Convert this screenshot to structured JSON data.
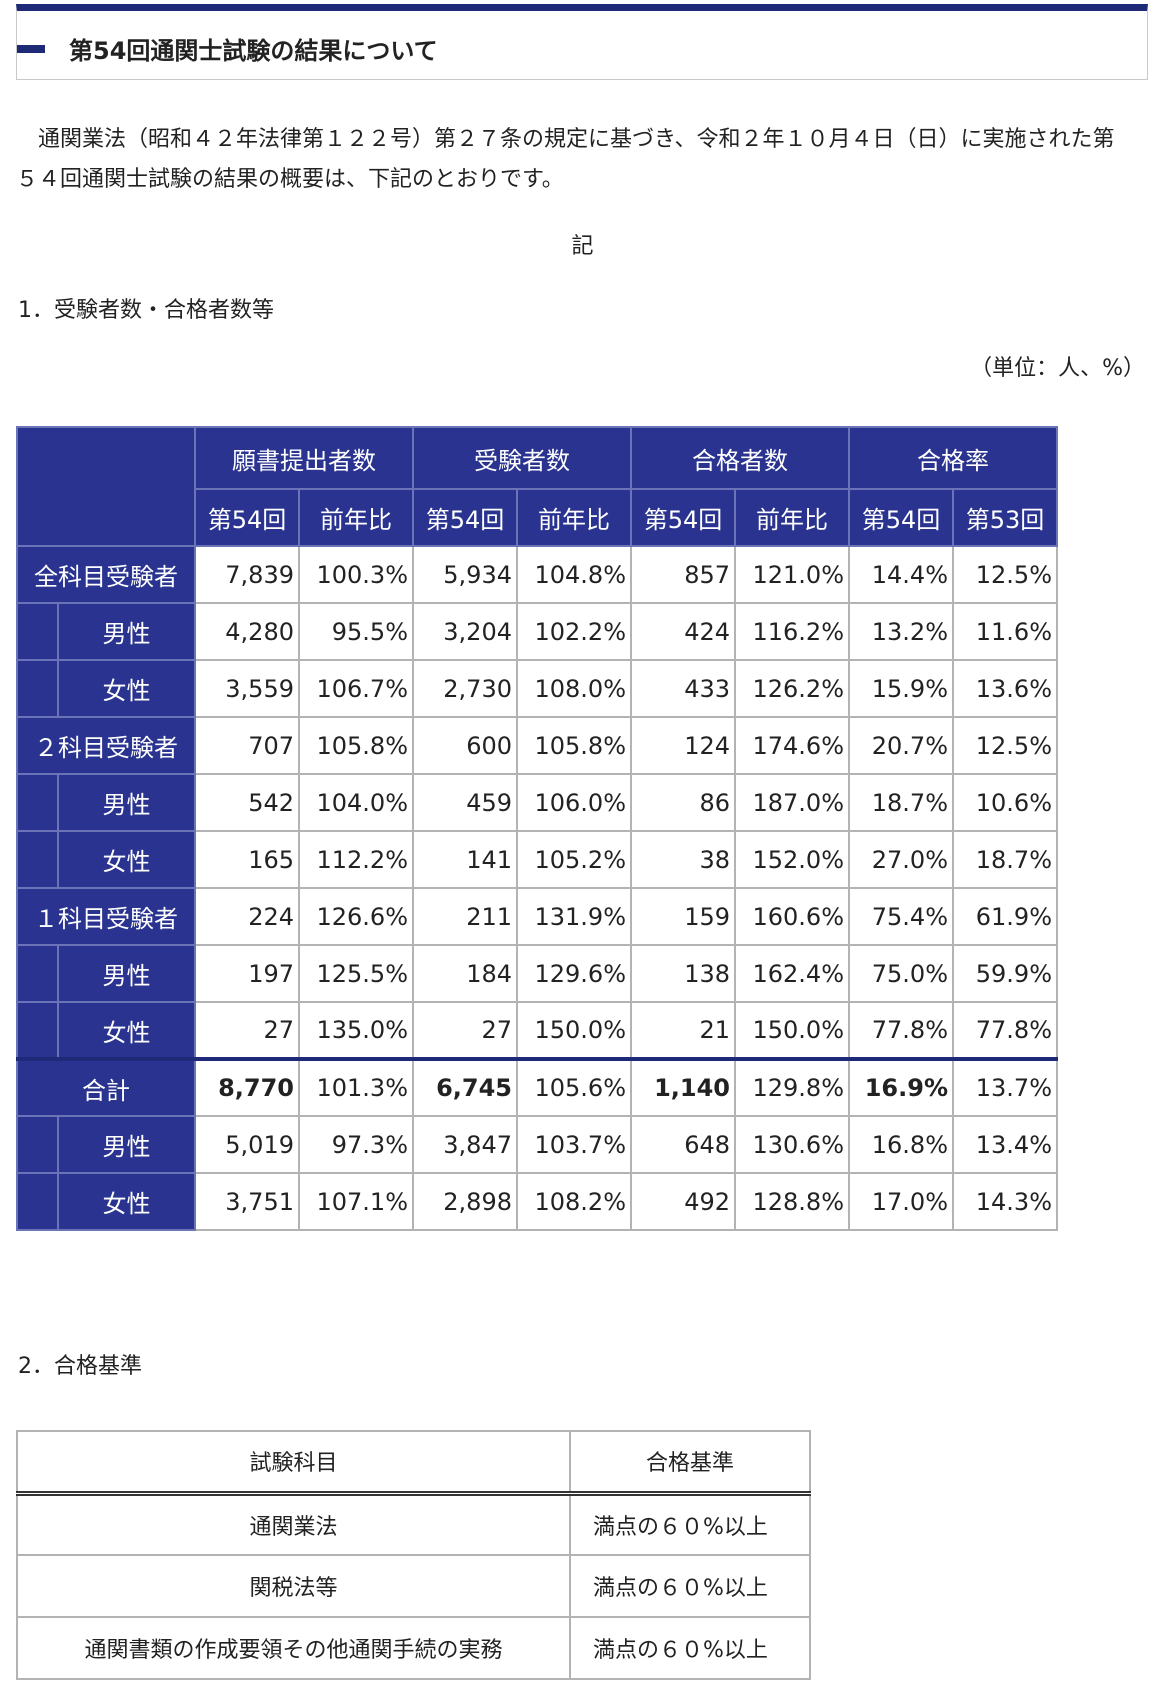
{
  "title": "第54回通関士試験の結果について",
  "intro": "通関業法（昭和４２年法律第１２２号）第２７条の規定に基づき、令和２年１０月４日（日）に実施された第５４回通関士試験の結果の概要は、下記のとおりです。",
  "ki": "記",
  "section1_heading": "1．受験者数・合格者数等",
  "unit_note": "（単位：人、%）",
  "results_table": {
    "groups": [
      "願書提出者数",
      "受験者数",
      "合格者数",
      "合格率"
    ],
    "subheads": [
      "第54回",
      "前年比",
      "第54回",
      "前年比",
      "第54回",
      "前年比",
      "第54回",
      "第53回"
    ],
    "rows": [
      {
        "label": "全科目受験者",
        "values": [
          "7,839",
          "100.3%",
          "5,934",
          "104.8%",
          "857",
          "121.0%",
          "14.4%",
          "12.5%"
        ]
      },
      {
        "label": "男性",
        "values": [
          "4,280",
          "95.5%",
          "3,204",
          "102.2%",
          "424",
          "116.2%",
          "13.2%",
          "11.6%"
        ]
      },
      {
        "label": "女性",
        "values": [
          "3,559",
          "106.7%",
          "2,730",
          "108.0%",
          "433",
          "126.2%",
          "15.9%",
          "13.6%"
        ]
      },
      {
        "label": "２科目受験者",
        "values": [
          "707",
          "105.8%",
          "600",
          "105.8%",
          "124",
          "174.6%",
          "20.7%",
          "12.5%"
        ]
      },
      {
        "label": "男性",
        "values": [
          "542",
          "104.0%",
          "459",
          "106.0%",
          "86",
          "187.0%",
          "18.7%",
          "10.6%"
        ]
      },
      {
        "label": "女性",
        "values": [
          "165",
          "112.2%",
          "141",
          "105.2%",
          "38",
          "152.0%",
          "27.0%",
          "18.7%"
        ]
      },
      {
        "label": "１科目受験者",
        "values": [
          "224",
          "126.6%",
          "211",
          "131.9%",
          "159",
          "160.6%",
          "75.4%",
          "61.9%"
        ]
      },
      {
        "label": "男性",
        "values": [
          "197",
          "125.5%",
          "184",
          "129.6%",
          "138",
          "162.4%",
          "75.0%",
          "59.9%"
        ]
      },
      {
        "label": "女性",
        "values": [
          "27",
          "135.0%",
          "27",
          "150.0%",
          "21",
          "150.0%",
          "77.8%",
          "77.8%"
        ]
      },
      {
        "label": "合計",
        "values": [
          "8,770",
          "101.3%",
          "6,745",
          "105.6%",
          "1,140",
          "129.8%",
          "16.9%",
          "13.7%"
        ]
      },
      {
        "label": "男性",
        "values": [
          "5,019",
          "97.3%",
          "3,847",
          "103.7%",
          "648",
          "130.6%",
          "16.8%",
          "13.4%"
        ]
      },
      {
        "label": "女性",
        "values": [
          "3,751",
          "107.1%",
          "2,898",
          "108.2%",
          "492",
          "128.8%",
          "17.0%",
          "14.3%"
        ]
      }
    ]
  },
  "section2_heading": "2．合格基準",
  "criteria_table": {
    "headers": [
      "試験科目",
      "合格基準"
    ],
    "rows": [
      {
        "subject": "通関業法",
        "standard": "満点の６０%以上"
      },
      {
        "subject": "関税法等",
        "standard": "満点の６０%以上"
      },
      {
        "subject": "通関書類の作成要領その他通関手続の実務",
        "standard": "満点の６０%以上"
      }
    ]
  },
  "colors": {
    "header_bg": "#2a3490",
    "title_accent": "#1e2a78"
  }
}
